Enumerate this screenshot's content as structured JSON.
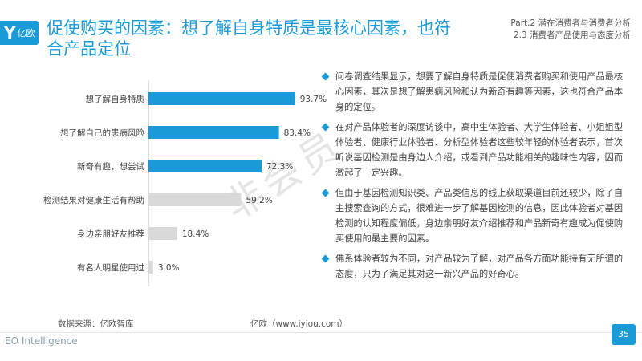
{
  "header": {
    "logo_text": "亿欧",
    "title": "促使购买的因素：想了解自身特质是最核心因素，也符合产品定位",
    "part_line1": "Part.2 潜在消费者与消费者分析",
    "part_line2": "2.3 消费者产品使用与态度分析"
  },
  "chart_data": {
    "type": "bar",
    "orientation": "horizontal",
    "categories": [
      "想了解自身特质",
      "想了解自己的患病风险",
      "新奇有趣，想尝试",
      "检测结果对健康生活有帮助",
      "身边亲朋好友推荐",
      "有名人明星使用过"
    ],
    "values": [
      93.7,
      83.4,
      72.3,
      59.2,
      18.4,
      3.0
    ],
    "value_labels": [
      "93.7%",
      "83.4%",
      "72.3%",
      "59.2%",
      "18.4%",
      "3.0%"
    ],
    "colors": [
      "#1a9bd7",
      "#1a9bd7",
      "#1a9bd7",
      "#d9d9d9",
      "#d9d9d9",
      "#d9d9d9"
    ],
    "xlim": [
      0,
      100
    ],
    "grid": false,
    "title": "",
    "xlabel": "",
    "ylabel": ""
  },
  "bullets": [
    "问卷调查结果显示，想要了解自身特质是促使消费者购买和使用产品最核心因素，其次是想了解患病风险和认为新奇有趣等因素，这也符合产品本身的定位。",
    "在对产品体验者的深度访谈中，高中生体验者、大学生体验者、小姐姐型体验者、健康行业体验者、分析型体验者这些较年轻的体验者表示，首次听说基因检测是由身边人介绍，或看到产品功能相关的趣味性内容，因而激起了一定兴趣。",
    "但由于基因检测知识类、产品类信息的线上获取渠道目前还较少，除了自主搜索查询的方式，很难进一步了解基因检测的信息，因此体验者对基因检测的认知程度偏低，身边亲朋好友介绍推荐和产品新奇有趣成为促使购买使用的最主要的因素。",
    "佛系体验者较为不同，对产品较为了解，对产品各方面功能持有无所谓的态度，只为了满足其对这一新兴产品的好奇心。"
  ],
  "watermark": "非会员",
  "footer": {
    "source": "数据来源：亿欧智库",
    "site": "亿欧（www.iyiou.com）",
    "brand": "EO Intelligence",
    "page": "35"
  }
}
